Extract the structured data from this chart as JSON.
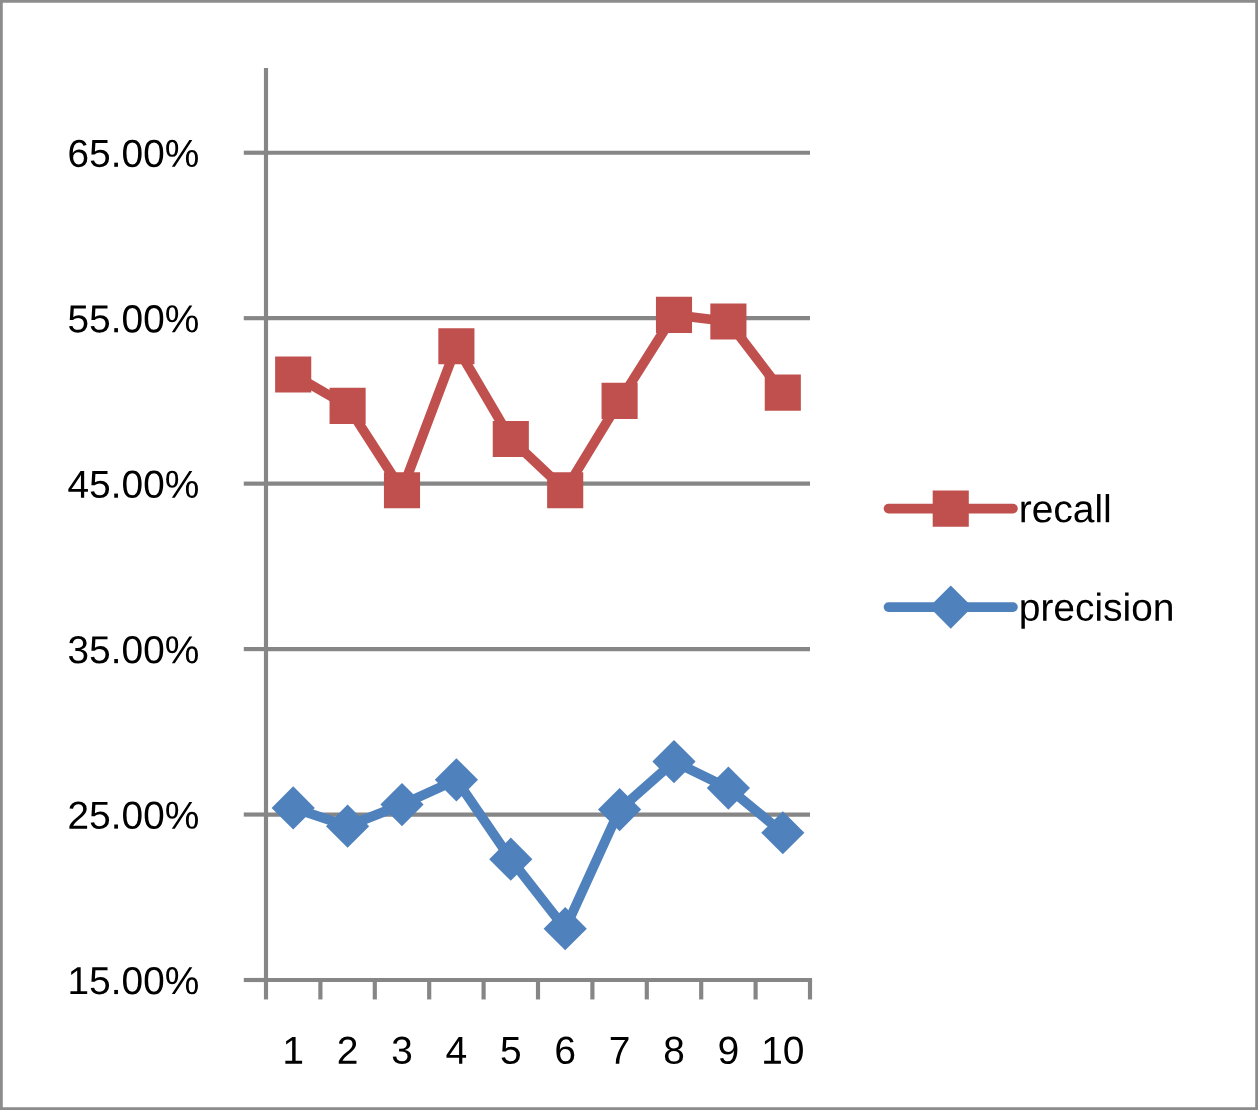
{
  "chart_data": {
    "type": "line",
    "categories": [
      "1",
      "2",
      "3",
      "4",
      "5",
      "6",
      "7",
      "8",
      "9",
      "10"
    ],
    "series": [
      {
        "name": "recall",
        "color": "#c0504d",
        "marker": "square",
        "values": [
          51.6,
          49.7,
          44.6,
          53.3,
          47.7,
          44.6,
          50.0,
          55.2,
          54.8,
          50.5
        ]
      },
      {
        "name": "precision",
        "color": "#4f81bd",
        "marker": "diamond",
        "values": [
          25.4,
          24.3,
          25.6,
          27.1,
          22.3,
          18.1,
          25.3,
          28.2,
          26.6,
          23.9
        ]
      }
    ],
    "ylim": [
      15,
      70
    ],
    "yticks": [
      {
        "value": 15,
        "label": "15.00%"
      },
      {
        "value": 25,
        "label": "25.00%"
      },
      {
        "value": 35,
        "label": "35.00%"
      },
      {
        "value": 45,
        "label": "45.00%"
      },
      {
        "value": 55,
        "label": "55.00%"
      },
      {
        "value": 65,
        "label": "65.00%"
      }
    ],
    "grid": "y",
    "legend": "right",
    "line_style": "solid"
  }
}
